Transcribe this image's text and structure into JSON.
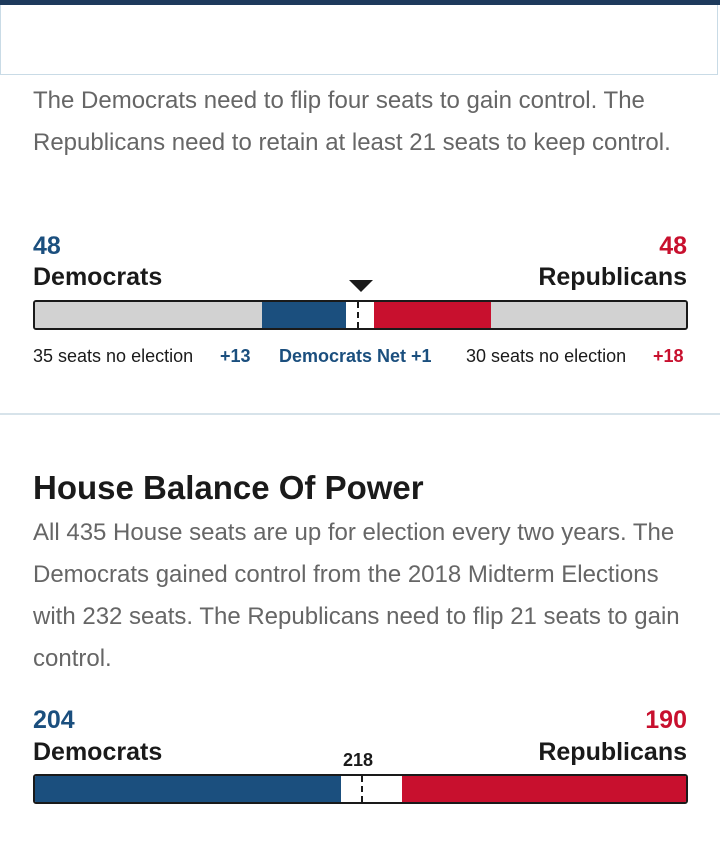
{
  "senate": {
    "description": "The Democrats need to flip four seats to gain control. The Republicans need to retain at least 21 seats to keep control.",
    "dem_count": "48",
    "dem_label": "Democrats",
    "rep_count": "48",
    "rep_label": "Republicans",
    "dem_no_election": "35 seats no election",
    "dem_gain": "+13",
    "net_label": "Democrats Net +1",
    "rep_no_election": "30 seats no election",
    "rep_gain": "+18"
  },
  "house": {
    "title": "House Balance Of Power",
    "description": "All 435 House seats are up for election every two years. The Democrats gained control from the 2018 Midterm Elections with 232 seats. The Republicans need to flip 21 seats to gain control.",
    "dem_count": "204",
    "dem_label": "Democrats",
    "rep_count": "190",
    "rep_label": "Republicans",
    "majority": "218"
  },
  "colors": {
    "democrat": "#1b4f7e",
    "republican": "#c8102e",
    "no_election": "#d2d2d2",
    "undecided": "#ffffff"
  }
}
